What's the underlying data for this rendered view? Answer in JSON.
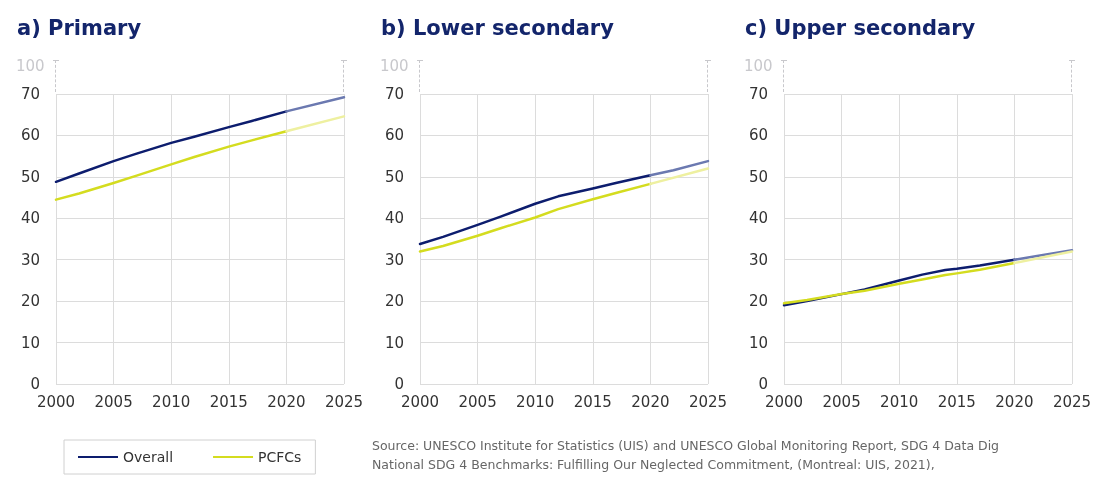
{
  "chart_data": [
    {
      "type": "line",
      "title": "a) Primary",
      "legend": "bottom left",
      "grid": true,
      "line_style": "solid",
      "marker": "none",
      "xlim": [
        2000,
        2025
      ],
      "xticks": [
        2000,
        2005,
        2010,
        2015,
        2020,
        2025
      ],
      "ylim": [
        0,
        70
      ],
      "yticks": [
        0,
        10,
        20,
        30,
        40,
        50,
        60,
        70
      ],
      "annotations": [
        "100"
      ],
      "series": [
        {
          "name": "Overall",
          "color": "#0d1d6e",
          "x": [
            2000,
            2002,
            2005,
            2007,
            2010,
            2012,
            2015,
            2017,
            2020
          ],
          "values": [
            48.8,
            50.8,
            53.8,
            55.6,
            58.2,
            59.7,
            62,
            63.5,
            65.8
          ]
        },
        {
          "name": "PCFCs",
          "color": "#d4dc1f",
          "x": [
            2000,
            2002,
            2005,
            2007,
            2010,
            2012,
            2015,
            2017,
            2020
          ],
          "values": [
            44.5,
            46,
            48.5,
            50.3,
            53,
            54.8,
            57.3,
            58.8,
            61
          ]
        },
        {
          "color": "#6b79b0",
          "x": [
            2020,
            2025
          ],
          "values": [
            65.8,
            69.2
          ]
        },
        {
          "color": "#eef0a0",
          "x": [
            2020,
            2025
          ],
          "values": [
            61,
            64.6
          ]
        }
      ]
    },
    {
      "type": "line",
      "title": "b) Lower secondary",
      "grid": true,
      "line_style": "solid",
      "marker": "none",
      "xlim": [
        2000,
        2025
      ],
      "xticks": [
        2000,
        2005,
        2010,
        2015,
        2020,
        2025
      ],
      "ylim": [
        0,
        70
      ],
      "yticks": [
        0,
        10,
        20,
        30,
        40,
        50,
        60,
        70
      ],
      "annotations": [
        "100",
        "Source: UNESCO Institute for Statistics (UIS) and UNESCO Global Monitoring Report, SDG 4 Data Dig",
        "National SDG 4 Benchmarks: Fulfilling Our Neglected Commitment, (Montreal: UIS, 2021),"
      ],
      "series": [
        {
          "color": "#0d1d6e",
          "x": [
            2000,
            2002,
            2005,
            2007,
            2010,
            2012,
            2015,
            2017,
            2020
          ],
          "values": [
            33.8,
            35.5,
            38.4,
            40.4,
            43.5,
            45.3,
            47.2,
            48.5,
            50.4
          ]
        },
        {
          "color": "#d4dc1f",
          "x": [
            2000,
            2002,
            2005,
            2007,
            2010,
            2012,
            2015,
            2017,
            2020
          ],
          "values": [
            32,
            33.3,
            35.8,
            37.6,
            40.2,
            42.2,
            44.6,
            46.1,
            48.3
          ]
        },
        {
          "color": "#6b79b0",
          "x": [
            2020,
            2022,
            2025
          ],
          "values": [
            50.4,
            51.6,
            53.8
          ]
        },
        {
          "color": "#eef0a0",
          "x": [
            2020,
            2025
          ],
          "values": [
            48.3,
            52
          ]
        }
      ]
    },
    {
      "type": "line",
      "title": "c) Upper secondary",
      "grid": true,
      "line_style": "solid",
      "marker": "none",
      "xlim": [
        2000,
        2025
      ],
      "xticks": [
        2000,
        2005,
        2010,
        2015,
        2020,
        2025
      ],
      "ylim": [
        0,
        70
      ],
      "yticks": [
        0,
        10,
        20,
        30,
        40,
        50,
        60,
        70
      ],
      "annotations": [
        "100"
      ],
      "series": [
        {
          "color": "#0d1d6e",
          "x": [
            2000,
            2002,
            2005,
            2007,
            2010,
            2012,
            2014,
            2015,
            2017,
            2020
          ],
          "values": [
            19,
            20,
            21.7,
            22.8,
            25,
            26.4,
            27.5,
            27.8,
            28.6,
            30
          ]
        },
        {
          "color": "#d4dc1f",
          "x": [
            2000,
            2002,
            2005,
            2007,
            2010,
            2012,
            2014,
            2015,
            2017,
            2020
          ],
          "values": [
            19.5,
            20.3,
            21.7,
            22.5,
            24.2,
            25.2,
            26.3,
            26.7,
            27.6,
            29.2
          ]
        },
        {
          "color": "#6b79b0",
          "x": [
            2020,
            2025
          ],
          "values": [
            30,
            32.3
          ]
        },
        {
          "color": "#eef0a0",
          "x": [
            2020,
            2025
          ],
          "values": [
            29.2,
            32
          ]
        }
      ]
    }
  ]
}
